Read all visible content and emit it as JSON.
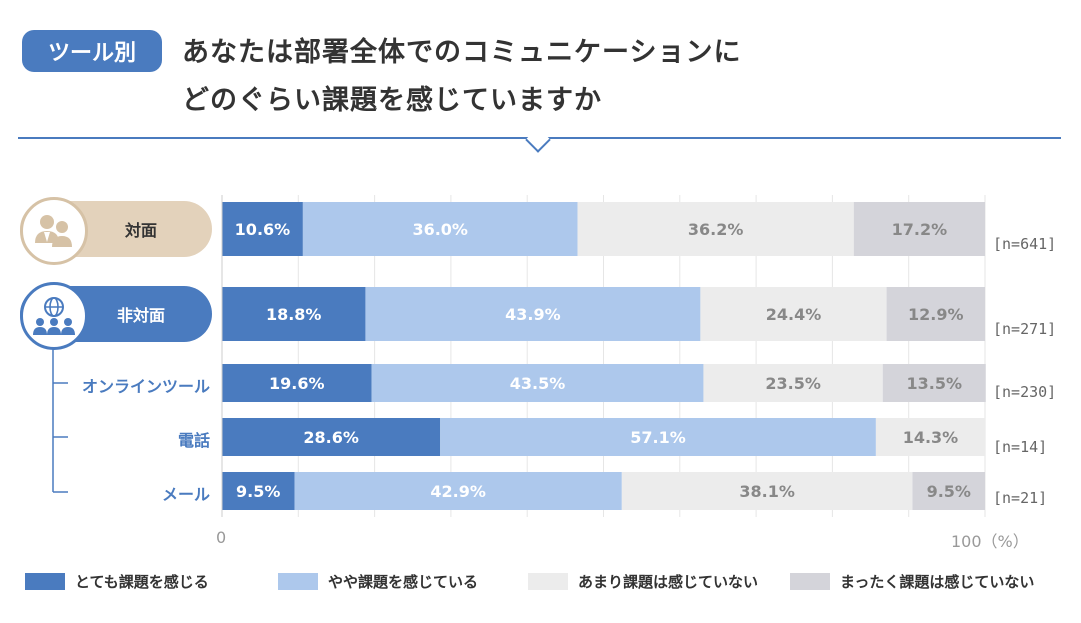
{
  "header": {
    "tag": "ツール別",
    "title_line1": "あなたは部署全体でのコミュニケーションに",
    "title_line2": "どのぐらい課題を感じていますか"
  },
  "colors": {
    "strong": "#4a7bbf",
    "some": "#adc8ec",
    "little": "#ececec",
    "none": "#d4d4da",
    "pill_face": "#e3d2bb",
    "pill_face_ring": "#d6c2a6",
    "pill_remote": "#4a7bbf"
  },
  "groups": {
    "face": {
      "label": "対面",
      "icon": "people-icon"
    },
    "remote": {
      "label": "非対面",
      "icon": "globe-people-icon"
    }
  },
  "axis": {
    "min_label": "0",
    "max_label": "100",
    "unit": "（%）"
  },
  "chart_data": {
    "type": "bar",
    "orientation": "horizontal",
    "stacked": true,
    "title": "あなたは部署全体でのコミュニケーションにどのぐらい課題を感じていますか",
    "xlim": [
      0,
      100
    ],
    "xlabel": "（%）",
    "categories": [
      "対面",
      "非対面",
      "オンラインツール",
      "電話",
      "メール"
    ],
    "n": [
      "[n=641]",
      "[n=271]",
      "[n=230]",
      "[n=14]",
      "[n=21]"
    ],
    "series": [
      {
        "name": "とても課題を感じる",
        "values": [
          10.6,
          18.8,
          19.6,
          28.6,
          9.5
        ]
      },
      {
        "name": "やや課題を感じている",
        "values": [
          36.0,
          43.9,
          43.5,
          57.1,
          42.9
        ]
      },
      {
        "name": "あまり課題は感じていない",
        "values": [
          36.2,
          24.4,
          23.5,
          14.3,
          38.1
        ]
      },
      {
        "name": "まったく課題は感じていない",
        "values": [
          17.2,
          12.9,
          13.5,
          0,
          9.5
        ]
      }
    ],
    "legend_position": "bottom"
  }
}
